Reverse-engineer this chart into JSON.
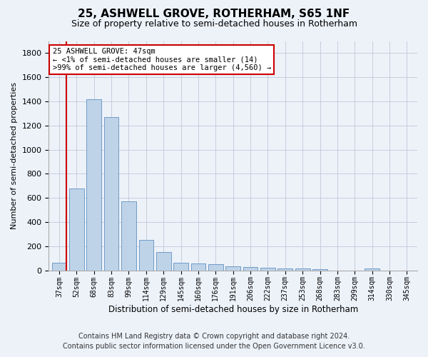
{
  "title": "25, ASHWELL GROVE, ROTHERHAM, S65 1NF",
  "subtitle": "Size of property relative to semi-detached houses in Rotherham",
  "xlabel": "Distribution of semi-detached houses by size in Rotherham",
  "ylabel": "Number of semi-detached properties",
  "categories": [
    "37sqm",
    "52sqm",
    "68sqm",
    "83sqm",
    "99sqm",
    "114sqm",
    "129sqm",
    "145sqm",
    "160sqm",
    "176sqm",
    "191sqm",
    "206sqm",
    "222sqm",
    "237sqm",
    "253sqm",
    "268sqm",
    "283sqm",
    "299sqm",
    "314sqm",
    "330sqm",
    "345sqm"
  ],
  "values": [
    65,
    675,
    1420,
    1270,
    570,
    250,
    150,
    62,
    58,
    50,
    30,
    25,
    20,
    15,
    15,
    8,
    0,
    0,
    15,
    0,
    0
  ],
  "bar_color": "#bed3e8",
  "bar_edge_color": "#6090c0",
  "highlight_color": "#cc0000",
  "annotation_title": "25 ASHWELL GROVE: 47sqm",
  "annotation_line1": "← <1% of semi-detached houses are smaller (14)",
  "annotation_line2": ">99% of semi-detached houses are larger (4,560) →",
  "ylim_max": 1900,
  "yticks": [
    0,
    200,
    400,
    600,
    800,
    1000,
    1200,
    1400,
    1600,
    1800
  ],
  "footer_line1": "Contains HM Land Registry data © Crown copyright and database right 2024.",
  "footer_line2": "Contains public sector information licensed under the Open Government Licence v3.0.",
  "bg_color": "#edf2f9"
}
